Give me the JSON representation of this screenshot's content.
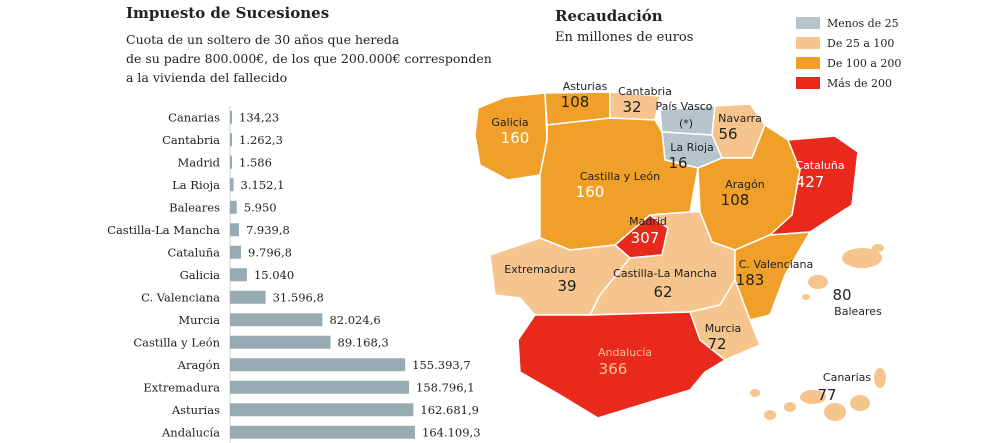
{
  "left_chart": {
    "title": "Impuesto de Sucesiones",
    "subtitle_lines": [
      "Cuota de un soltero de 30 años que hereda",
      "de su padre 800.000€, de los que 200.000€ corresponden",
      "a la vivienda del fallecido"
    ]
  },
  "map": {
    "title": "Recaudación",
    "subtitle": "En millones de euros",
    "legend": [
      {
        "label": "Menos de 25",
        "color": "#b7c4cc"
      },
      {
        "label": "De 25 a 100",
        "color": "#f6c48d"
      },
      {
        "label": "De 100 a 200",
        "color": "#f0a028"
      },
      {
        "label": "Más de 200",
        "color": "#e8291c"
      }
    ],
    "regions": [
      {
        "name": "Asturias",
        "value": "108"
      },
      {
        "name": "Cantabria",
        "value": "32"
      },
      {
        "name": "País Vasco",
        "value": "(*)"
      },
      {
        "name": "Navarra",
        "value": "56"
      },
      {
        "name": "Galicia",
        "value": "160"
      },
      {
        "name": "La Rioja",
        "value": "16"
      },
      {
        "name": "Cataluña",
        "value": "427"
      },
      {
        "name": "Castilla y León",
        "value": "160"
      },
      {
        "name": "Aragón",
        "value": "108"
      },
      {
        "name": "Madrid",
        "value": "307"
      },
      {
        "name": "Extremadura",
        "value": "39"
      },
      {
        "name": "Castilla-La Mancha",
        "value": "62"
      },
      {
        "name": "C. Valenciana",
        "value": "183"
      },
      {
        "name": "Baleares",
        "value": "80"
      },
      {
        "name": "Murcia",
        "value": "72"
      },
      {
        "name": "Andalucía",
        "value": "366"
      },
      {
        "name": "Canarias",
        "value": "77"
      }
    ]
  },
  "chart_data": {
    "type": "bar",
    "orientation": "horizontal",
    "bar_color": "#98aab2",
    "categories": [
      "Canarias",
      "Cantabria",
      "Madrid",
      "La Rioja",
      "Baleares",
      "Castilla-La Mancha",
      "Cataluña",
      "Galicia",
      "C. Valenciana",
      "Murcia",
      "Castilla y León",
      "Aragón",
      "Extremadura",
      "Asturias",
      "Andalucía"
    ],
    "values": [
      134.23,
      1262.3,
      1586,
      3152.1,
      5950,
      7939.8,
      9796.8,
      15040,
      31596.8,
      82024.6,
      89168.3,
      155393.7,
      158796.1,
      162681.9,
      164109.3
    ],
    "value_labels": [
      "134,23",
      "1.262,3",
      "1.586",
      "3.152,1",
      "5.950",
      "7.939,8",
      "9.796,8",
      "15.040",
      "31.596,8",
      "82.024,6",
      "89.168,3",
      "155.393,7",
      "158.796,1",
      "162.681,9",
      "164.109,3"
    ]
  }
}
